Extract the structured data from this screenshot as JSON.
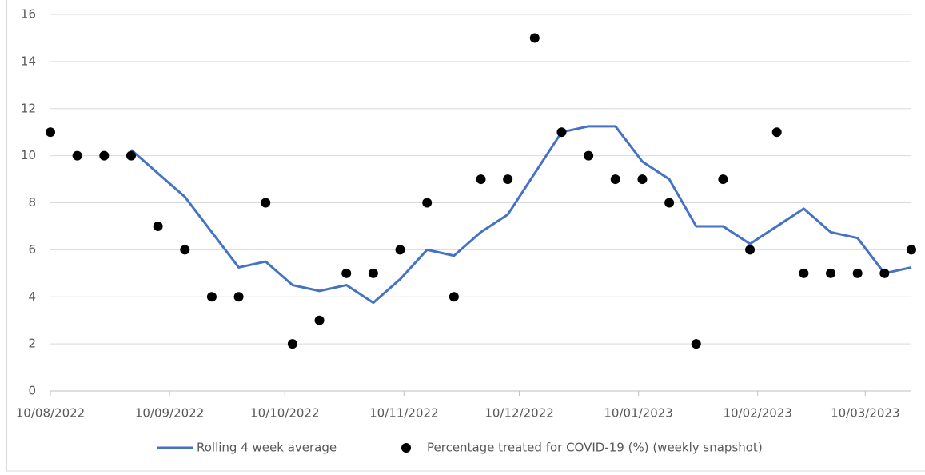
{
  "chart_data": {
    "type": "line",
    "x": [
      "10/08/2022",
      "17/08/2022",
      "24/08/2022",
      "31/08/2022",
      "07/09/2022",
      "14/09/2022",
      "21/09/2022",
      "28/09/2022",
      "05/10/2022",
      "12/10/2022",
      "19/10/2022",
      "26/10/2022",
      "02/11/2022",
      "09/11/2022",
      "16/11/2022",
      "23/11/2022",
      "30/11/2022",
      "07/12/2022",
      "14/12/2022",
      "21/12/2022",
      "28/12/2022",
      "04/01/2023",
      "11/01/2023",
      "18/01/2023",
      "25/01/2023",
      "01/02/2023",
      "08/02/2023",
      "15/02/2023",
      "22/02/2023",
      "01/03/2023",
      "08/03/2023",
      "15/03/2023",
      "22/03/2023"
    ],
    "series": [
      {
        "name": "Rolling 4 week average",
        "color": "#4472c4",
        "style": "line",
        "values": [
          null,
          null,
          null,
          10.25,
          9.25,
          8.25,
          6.75,
          5.25,
          5.5,
          4.5,
          4.25,
          4.5,
          3.75,
          4.75,
          6,
          5.75,
          6.75,
          7.5,
          9.25,
          11,
          11.25,
          11.25,
          9.75,
          9,
          7,
          7,
          6.25,
          7,
          7.75,
          6.75,
          6.5,
          5,
          5.25
        ]
      },
      {
        "name": "Percentage treated for COVID-19 (%) (weekly snapshot)",
        "color": "#000000",
        "style": "marker",
        "values": [
          11,
          10,
          10,
          10,
          7,
          6,
          4,
          4,
          8,
          2,
          3,
          5,
          5,
          6,
          8,
          4,
          9,
          9,
          15,
          11,
          10,
          9,
          9,
          8,
          2,
          9,
          6,
          11,
          5,
          5,
          5,
          5,
          6
        ]
      }
    ],
    "xlim": [
      "10/08/2022",
      "22/03/2023"
    ],
    "xticks": [
      "10/08/2022",
      "10/09/2022",
      "10/10/2022",
      "10/11/2022",
      "10/12/2022",
      "10/01/2023",
      "10/02/2023",
      "10/03/2023"
    ],
    "ylim": [
      0,
      16
    ],
    "yticks": [
      0,
      2,
      4,
      6,
      8,
      10,
      12,
      14,
      16
    ],
    "grid": true,
    "legend": "bottom"
  }
}
